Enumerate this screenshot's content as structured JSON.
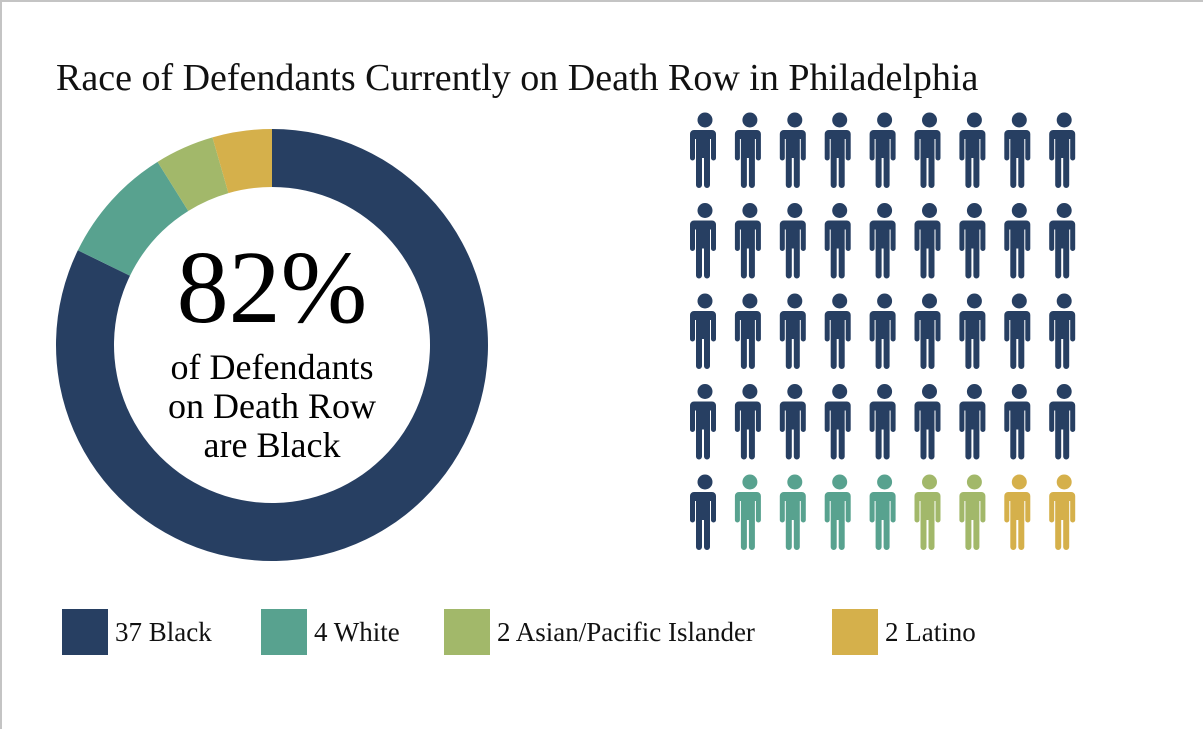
{
  "chart_data": {
    "type": "pie",
    "title": "Race of Defendants Currently on Death Row in Philadelphia",
    "categories": [
      "Black",
      "White",
      "Asian/Pacific Islander",
      "Latino"
    ],
    "values": [
      37,
      4,
      2,
      2
    ],
    "colors": [
      "#273f62",
      "#58a28f",
      "#a2b86a",
      "#d5b04b"
    ],
    "legend": [
      "37 Black",
      "4 White",
      "2 Asian/Pacific Islander",
      "2 Latino"
    ],
    "legend_position": "bottom",
    "center_text": {
      "value": "82%",
      "lines": [
        "of Defendants",
        "on Death Row",
        "are Black"
      ]
    },
    "icon_array": {
      "icon": "person-icon",
      "per_row": 9,
      "total": 45
    }
  }
}
